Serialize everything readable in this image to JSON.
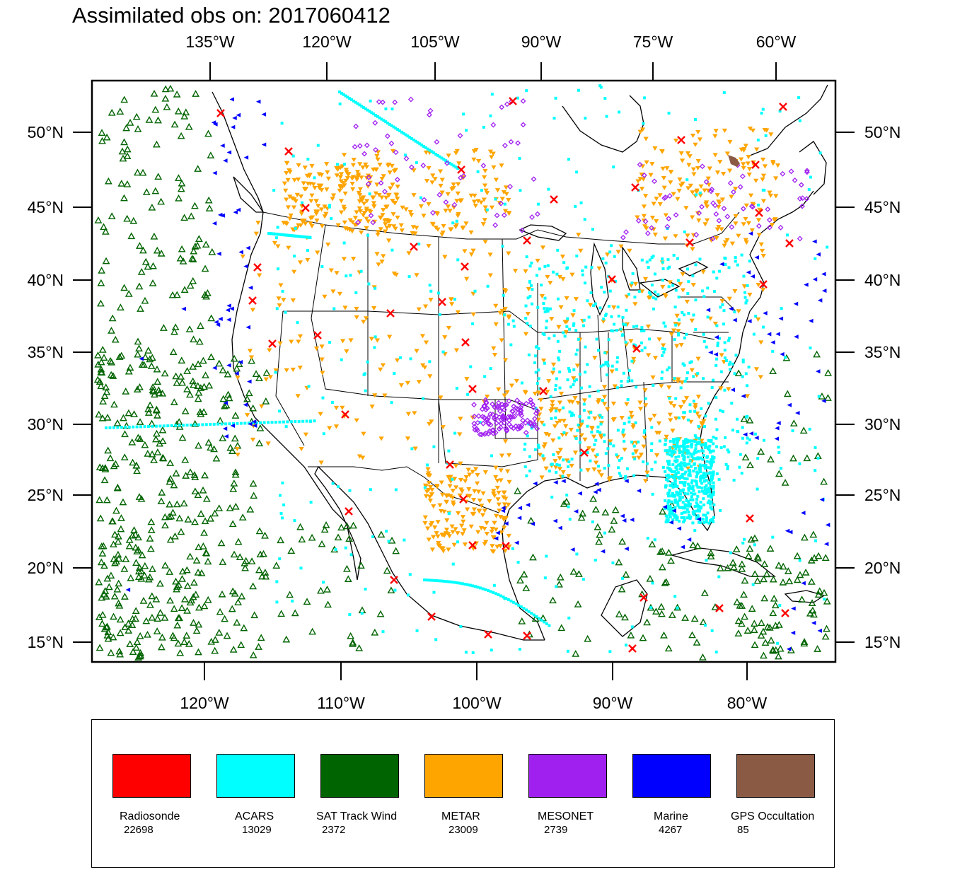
{
  "title": "Assimilated obs on: 2017060412",
  "map": {
    "projection": "lambert-conformal",
    "region": "North America / CONUS",
    "top_axis_labels": [
      "135°W",
      "120°W",
      "105°W",
      "90°W",
      "75°W",
      "60°W"
    ],
    "bottom_axis_labels": [
      "120°W",
      "110°W",
      "100°W",
      "90°W",
      "80°W"
    ],
    "lat_labels": [
      "50°N",
      "45°N",
      "40°N",
      "35°N",
      "30°N",
      "25°N",
      "20°N",
      "15°N"
    ]
  },
  "colors": {
    "Radiosonde": "#ff0000",
    "ACARS": "#00ffff",
    "SAT Track Wind": "#006400",
    "METAR": "#ffa500",
    "MESONET": "#a020f0",
    "Marine": "#0000ff",
    "GPS Occultation": "#8b5a44"
  },
  "legend": [
    {
      "name": "Radiosonde",
      "count": "22698",
      "color": "#ff0000"
    },
    {
      "name": "ACARS",
      "count": "13029",
      "color": "#00ffff"
    },
    {
      "name": "SAT Track Wind",
      "count": "2372",
      "color": "#006400"
    },
    {
      "name": "METAR",
      "count": "23009",
      "color": "#ffa500"
    },
    {
      "name": "MESONET",
      "count": "2739",
      "color": "#a020f0"
    },
    {
      "name": "Marine",
      "count": "4267",
      "color": "#0000ff"
    },
    {
      "name": "GPS Occultation",
      "count": "85",
      "color": "#8b5a44"
    }
  ]
}
